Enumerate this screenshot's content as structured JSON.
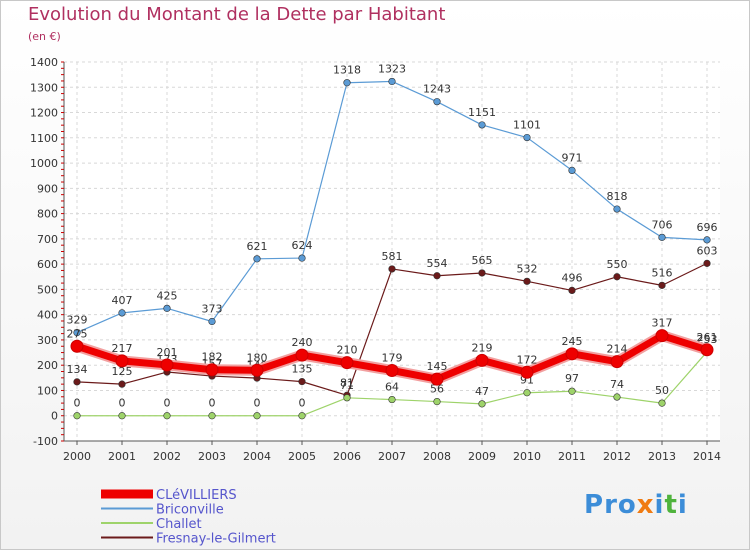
{
  "title": "Evolution du Montant de la Dette par Habitant",
  "subtitle": "(en €)",
  "logo": "Proxiti",
  "chart_data": {
    "type": "line",
    "x": [
      2000,
      2001,
      2002,
      2003,
      2004,
      2005,
      2006,
      2007,
      2008,
      2009,
      2010,
      2011,
      2012,
      2013,
      2014
    ],
    "ylim": [
      -100,
      1400
    ],
    "yticks": [
      -100,
      0,
      100,
      200,
      300,
      400,
      500,
      600,
      700,
      800,
      900,
      1000,
      1100,
      1200,
      1300,
      1400
    ],
    "grid": true,
    "legend_position": "bottom-left",
    "series": [
      {
        "name": "Briconville",
        "color": "#5b9bd5",
        "values": [
          329,
          407,
          425,
          373,
          621,
          624,
          1318,
          1323,
          1243,
          1151,
          1101,
          971,
          818,
          706,
          696
        ]
      },
      {
        "name": "Fresnay-le-Gilmert",
        "color": "#6b1a1a",
        "values": [
          134,
          125,
          173,
          157,
          149,
          135,
          81,
          581,
          554,
          565,
          532,
          496,
          550,
          516,
          603
        ]
      },
      {
        "name": "Challet",
        "color": "#9ed36a",
        "values": [
          0,
          0,
          0,
          0,
          0,
          0,
          71,
          64,
          56,
          47,
          91,
          97,
          74,
          50,
          253
        ]
      },
      {
        "name": "CLéVILLIERS",
        "color": "#ee0000",
        "values": [
          275,
          217,
          201,
          182,
          180,
          240,
          210,
          179,
          145,
          219,
          172,
          245,
          214,
          317,
          261
        ]
      }
    ],
    "legend_order": [
      "CLéVILLIERS",
      "Briconville",
      "Challet",
      "Fresnay-le-Gilmert"
    ]
  }
}
